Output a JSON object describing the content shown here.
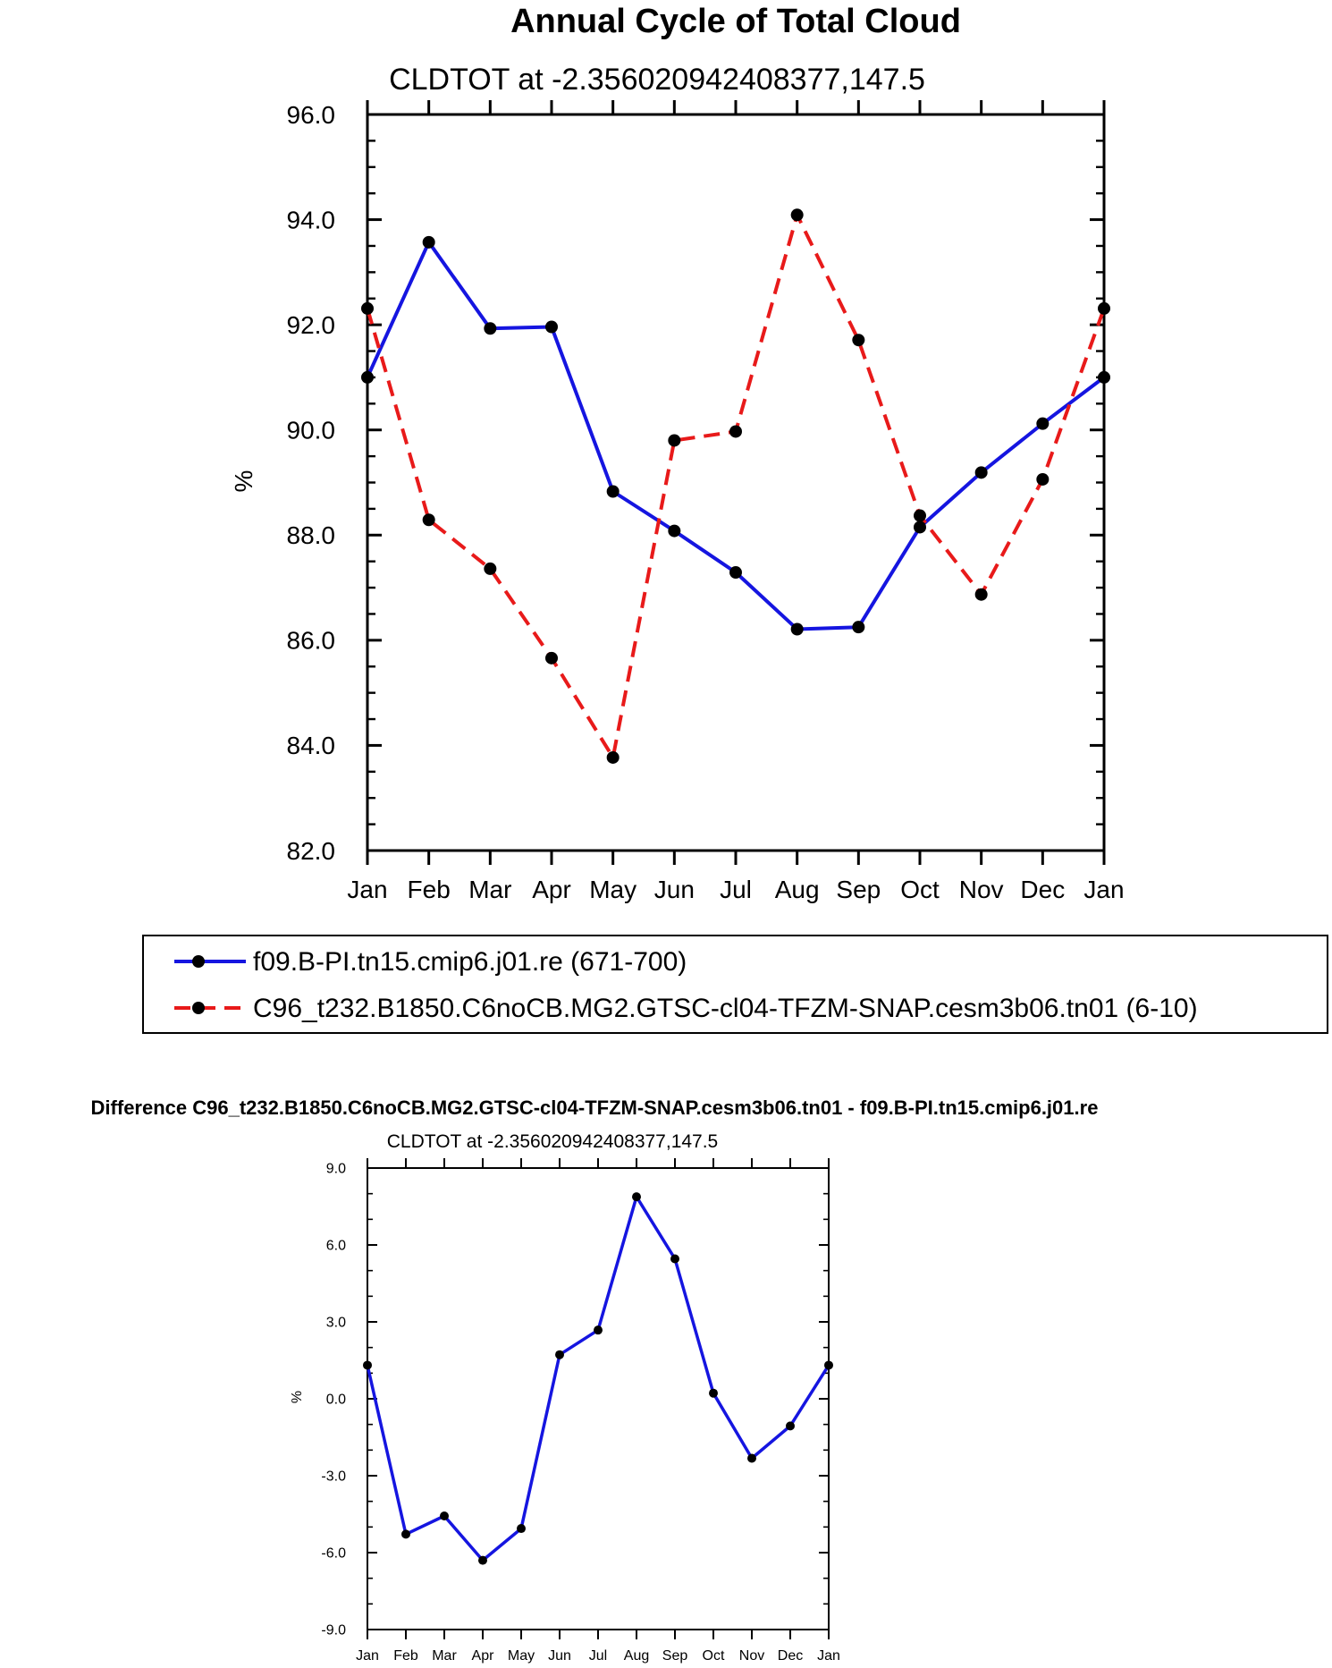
{
  "chart_data": [
    {
      "type": "line",
      "title": "Annual Cycle of Total Cloud",
      "subtitle": "CLDTOT at -2.356020942408377,147.5",
      "xlabel": "",
      "ylabel": "%",
      "categories": [
        "Jan",
        "Feb",
        "Mar",
        "Apr",
        "May",
        "Jun",
        "Jul",
        "Aug",
        "Sep",
        "Oct",
        "Nov",
        "Dec",
        "Jan"
      ],
      "ylim": [
        82.0,
        96.0
      ],
      "yticks": [
        "82.0",
        "84.0",
        "86.0",
        "88.0",
        "90.0",
        "92.0",
        "94.0",
        "96.0"
      ],
      "series": [
        {
          "name": "f09.B-PI.tn15.cmip6.j01.re (671-700)",
          "color": "#1515e0",
          "style": "solid",
          "values": [
            91.0,
            93.57,
            91.93,
            91.96,
            88.83,
            88.08,
            87.29,
            86.21,
            86.25,
            88.15,
            89.19,
            90.12,
            91.0
          ]
        },
        {
          "name": "C96_t232.B1850.C6noCB.MG2.GTSC-cl04-TFZM-SNAP.cesm3b06.tn01 (6-10)",
          "color": "#e81a1a",
          "style": "dashed",
          "values": [
            92.31,
            88.29,
            87.36,
            85.66,
            83.77,
            89.8,
            89.97,
            94.09,
            91.71,
            88.37,
            86.87,
            89.06,
            92.31
          ]
        }
      ],
      "grid": false,
      "legend": "bottom"
    },
    {
      "type": "line",
      "title": "Difference C96_t232.B1850.C6noCB.MG2.GTSC-cl04-TFZM-SNAP.cesm3b06.tn01 - f09.B-PI.tn15.cmip6.j01.re",
      "subtitle": "CLDTOT at -2.356020942408377,147.5",
      "xlabel": "",
      "ylabel": "%",
      "categories": [
        "Jan",
        "Feb",
        "Mar",
        "Apr",
        "May",
        "Jun",
        "Jul",
        "Aug",
        "Sep",
        "Oct",
        "Nov",
        "Dec",
        "Jan"
      ],
      "ylim": [
        -9.0,
        9.0
      ],
      "yticks": [
        "-9.0",
        "-6.0",
        "-3.0",
        "0.0",
        "3.0",
        "6.0",
        "9.0"
      ],
      "series": [
        {
          "name": "difference",
          "color": "#1515e0",
          "style": "solid",
          "values": [
            1.31,
            -5.28,
            -4.57,
            -6.3,
            -5.06,
            1.72,
            2.68,
            7.88,
            5.46,
            0.22,
            -2.32,
            -1.06,
            1.31
          ]
        }
      ],
      "grid": false
    }
  ]
}
